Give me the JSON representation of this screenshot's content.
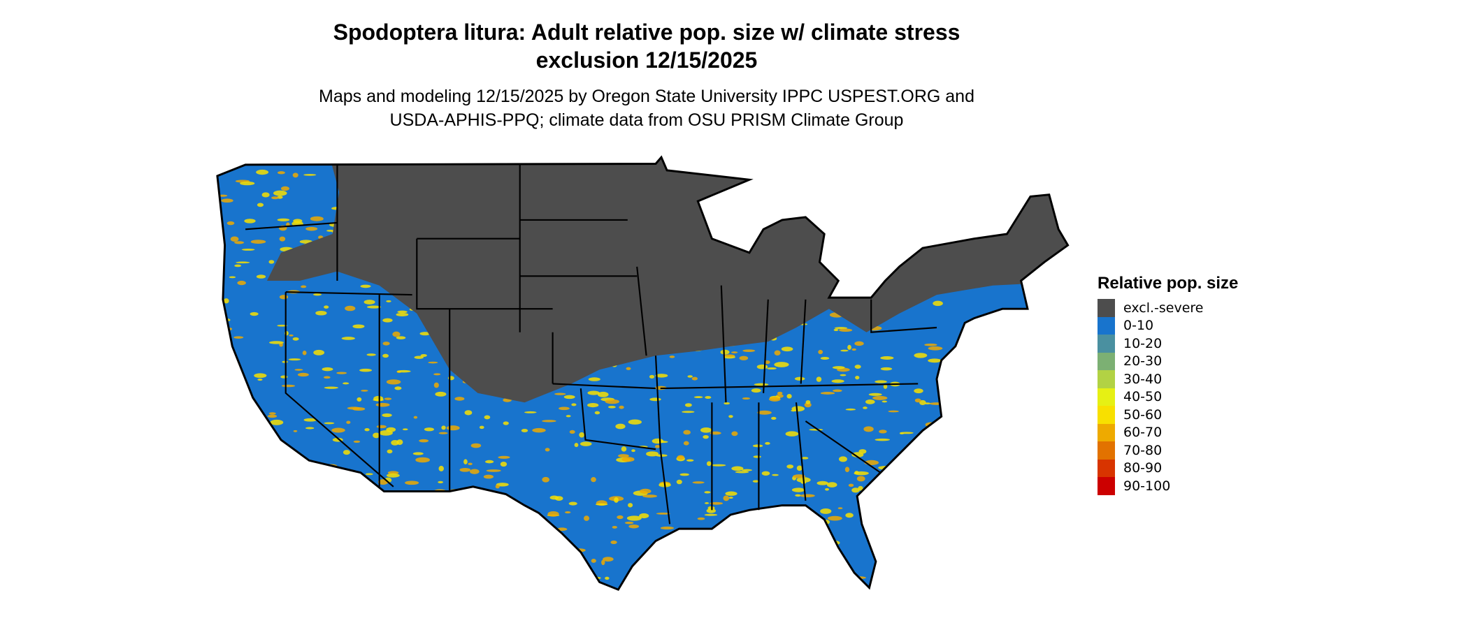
{
  "title_line1": "Spodoptera litura: Adult relative pop. size w/ climate stress",
  "title_line2": "exclusion 12/15/2025",
  "subtitle_line1": "Maps and modeling 12/15/2025 by Oregon State University IPPC USPEST.ORG and",
  "subtitle_line2": "USDA-APHIS-PPQ; climate data from OSU PRISM Climate Group",
  "map_region": "contiguous United States",
  "legend": {
    "title": "Relative pop. size",
    "items": [
      {
        "label": "excl.-severe",
        "color": "#4d4d4d"
      },
      {
        "label": "0-10",
        "color": "#1874cd"
      },
      {
        "label": "10-20",
        "color": "#4a90a0"
      },
      {
        "label": "20-30",
        "color": "#7cb073"
      },
      {
        "label": "30-40",
        "color": "#b2d244"
      },
      {
        "label": "40-50",
        "color": "#e6f014"
      },
      {
        "label": "50-60",
        "color": "#f8e000"
      },
      {
        "label": "60-70",
        "color": "#eeaa00"
      },
      {
        "label": "70-80",
        "color": "#e27200"
      },
      {
        "label": "80-90",
        "color": "#d83400"
      },
      {
        "label": "90-100",
        "color": "#cc0000"
      }
    ]
  }
}
